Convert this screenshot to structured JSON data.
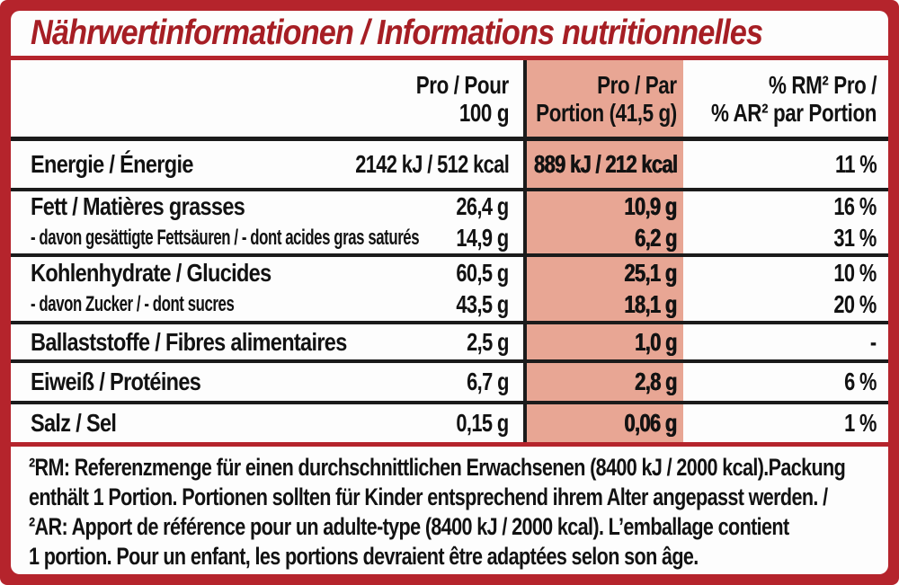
{
  "title": "Nährwertinformationen / Informations nutritionnelles",
  "colors": {
    "frame_red": "#b5242c",
    "title_red": "#a61e24",
    "portion_highlight": "#e8a694",
    "rule_black": "#1b1b1b"
  },
  "table": {
    "header": {
      "per100_l1": "Pro / Pour",
      "per100_l2": "100 g",
      "portion_l1": "Pro / Par",
      "portion_l2": "Portion (41,5 g)",
      "rm_l1": "% RM² Pro /",
      "rm_l2": "% AR² par Portion"
    },
    "rows": [
      {
        "label": "Energie / Énergie",
        "per100": "2142 kJ / 512 kcal",
        "portion": "889 kJ / 212 kcal",
        "rm": "11 %"
      },
      {
        "label": "Fett / Matières grasses",
        "per100": "26,4 g",
        "portion": "10,9 g",
        "rm": "16 %"
      },
      {
        "label": "- davon gesättigte Fettsäuren / - dont acides gras saturés",
        "per100": "14,9 g",
        "portion": "6,2 g",
        "rm": "31 %"
      },
      {
        "label": "Kohlenhydrate / Glucides",
        "per100": "60,5 g",
        "portion": "25,1 g",
        "rm": "10 %"
      },
      {
        "label": "- davon Zucker / - dont sucres",
        "per100": "43,5 g",
        "portion": "18,1 g",
        "rm": "20 %"
      },
      {
        "label": "Ballaststoffe / Fibres alimentaires",
        "per100": "2,5 g",
        "portion": "1,0 g",
        "rm": "-"
      },
      {
        "label": "Eiweiß / Protéines",
        "per100": "6,7 g",
        "portion": "2,8 g",
        "rm": "6 %"
      },
      {
        "label": "Salz / Sel",
        "per100": "0,15 g",
        "portion": "0,06 g",
        "rm": "1 %"
      }
    ]
  },
  "footnote": {
    "lines": [
      "²RM: Referenzmenge für einen durchschnittlichen Erwachsenen (8400 kJ / 2000 kcal).Packung",
      "enthält 1 Portion. Portionen sollten für Kinder entsprechend ihrem Alter angepasst werden. /",
      "²AR: Apport de référence pour un adulte-type (8400 kJ / 2000 kcal). L’emballage contient",
      "1 portion. Pour un enfant, les portions devraient être adaptées selon son âge."
    ]
  }
}
